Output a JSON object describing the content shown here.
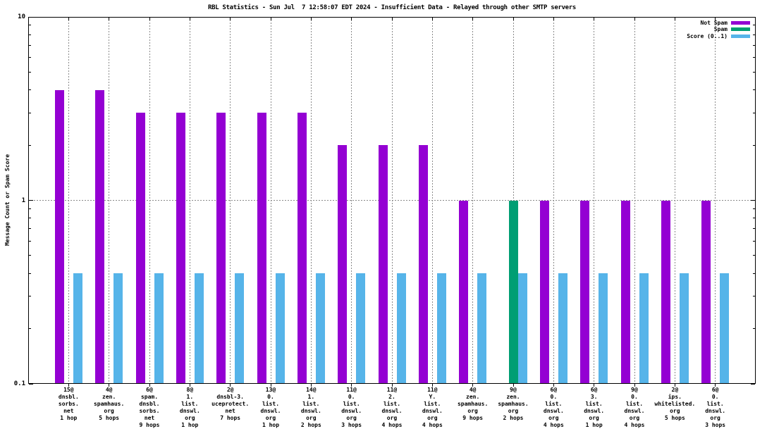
{
  "chart_data": {
    "type": "bar",
    "title": "RBL Statistics - Sun Jul  7 12:58:07 EDT 2024 - Insufficient Data - Relayed through other SMTP servers",
    "ylabel": "Message Count or Spam Score",
    "xlabel": "",
    "y_scale": "log",
    "ylim": [
      0.1,
      10
    ],
    "yticks": [
      {
        "label": "10",
        "value": 10
      },
      {
        "label": "1",
        "value": 1
      },
      {
        "label": "0.1",
        "value": 0.1
      }
    ],
    "grid": true,
    "legend_position": "top-right-inside",
    "colors": {
      "background": "#ffffff",
      "axis": "#000000",
      "grid": "#8a8a8a",
      "not_spam": "#9400d3",
      "spam": "#009e73",
      "score": "#56b4e9"
    },
    "categories": [
      [
        "15@",
        "dnsbl.",
        "sorbs.",
        "net",
        "1 hop"
      ],
      [
        "4@",
        "zen.",
        "spamhaus.",
        "org",
        "5 hops"
      ],
      [
        "6@",
        "spam.",
        "dnsbl.",
        "sorbs.",
        "net",
        "9 hops"
      ],
      [
        "8@",
        "1.",
        "list.",
        "dnswl.",
        "org",
        "1 hop"
      ],
      [
        "2@",
        "dnsbl-3.",
        "uceprotect.",
        "net",
        "7 hops"
      ],
      [
        "13@",
        "0.",
        "list.",
        "dnswl.",
        "org",
        "1 hop"
      ],
      [
        "14@",
        "1.",
        "list.",
        "dnswl.",
        "org",
        "2 hops"
      ],
      [
        "11@",
        "0.",
        "list.",
        "dnswl.",
        "org",
        "3 hops"
      ],
      [
        "11@",
        "2.",
        "list.",
        "dnswl.",
        "org",
        "4 hops"
      ],
      [
        "11@",
        "Y.",
        "list.",
        "dnswl.",
        "org",
        "4 hops"
      ],
      [
        "4@",
        "zen.",
        "spamhaus.",
        "org",
        "9 hops"
      ],
      [
        "9@",
        "zen.",
        "spamhaus.",
        "org",
        "2 hops"
      ],
      [
        "6@",
        "0.",
        "list.",
        "dnswl.",
        "org",
        "4 hops"
      ],
      [
        "6@",
        "3.",
        "list.",
        "dnswl.",
        "org",
        "1 hop"
      ],
      [
        "9@",
        "0.",
        "list.",
        "dnswl.",
        "org",
        "4 hops"
      ],
      [
        "2@",
        "ips.",
        "whitelisted.",
        "org",
        "5 hops"
      ],
      [
        "6@",
        "0.",
        "list.",
        "dnswl.",
        "org",
        "3 hops"
      ]
    ],
    "series": [
      {
        "name": "Not Spam",
        "color": "#9400d3",
        "values": [
          4,
          4,
          3,
          3,
          3,
          3,
          3,
          2,
          2,
          2,
          1,
          null,
          1,
          1,
          1,
          1,
          1
        ]
      },
      {
        "name": "Spam",
        "color": "#009e73",
        "values": [
          null,
          null,
          null,
          null,
          null,
          null,
          null,
          null,
          null,
          null,
          null,
          1,
          null,
          null,
          null,
          null,
          null
        ]
      },
      {
        "name": "Score (0..1)",
        "color": "#56b4e9",
        "values": [
          0.4,
          0.4,
          0.4,
          0.4,
          0.4,
          0.4,
          0.4,
          0.4,
          0.4,
          0.4,
          0.4,
          0.4,
          0.4,
          0.4,
          0.4,
          0.4,
          0.4
        ]
      }
    ]
  }
}
